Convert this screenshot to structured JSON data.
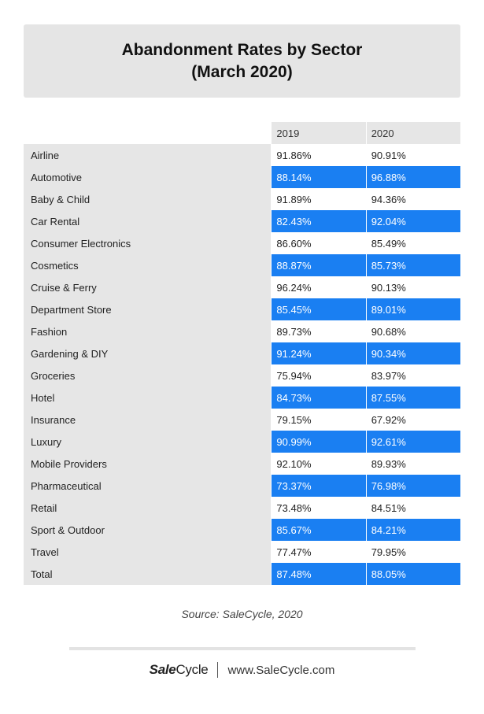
{
  "chart_data": {
    "type": "table",
    "title_lines": [
      "Abandonment Rates by Sector",
      "(March 2020)"
    ],
    "columns": [
      "2019",
      "2020"
    ],
    "rows": [
      {
        "label": "Airline",
        "values": [
          "91.86%",
          "90.91%"
        ]
      },
      {
        "label": "Automotive",
        "values": [
          "88.14%",
          "96.88%"
        ]
      },
      {
        "label": "Baby & Child",
        "values": [
          "91.89%",
          "94.36%"
        ]
      },
      {
        "label": "Car Rental",
        "values": [
          "82.43%",
          "92.04%"
        ]
      },
      {
        "label": "Consumer Electronics",
        "values": [
          "86.60%",
          "85.49%"
        ]
      },
      {
        "label": "Cosmetics",
        "values": [
          "88.87%",
          "85.73%"
        ]
      },
      {
        "label": "Cruise & Ferry",
        "values": [
          "96.24%",
          "90.13%"
        ]
      },
      {
        "label": "Department Store",
        "values": [
          "85.45%",
          "89.01%"
        ]
      },
      {
        "label": "Fashion",
        "values": [
          "89.73%",
          "90.68%"
        ]
      },
      {
        "label": "Gardening & DIY",
        "values": [
          "91.24%",
          "90.34%"
        ]
      },
      {
        "label": "Groceries",
        "values": [
          "75.94%",
          "83.97%"
        ]
      },
      {
        "label": "Hotel",
        "values": [
          "84.73%",
          "87.55%"
        ]
      },
      {
        "label": "Insurance",
        "values": [
          "79.15%",
          "67.92%"
        ]
      },
      {
        "label": "Luxury",
        "values": [
          "90.99%",
          "92.61%"
        ]
      },
      {
        "label": "Mobile Providers",
        "values": [
          "92.10%",
          "89.93%"
        ]
      },
      {
        "label": "Pharmaceutical",
        "values": [
          "73.37%",
          "76.98%"
        ]
      },
      {
        "label": "Retail",
        "values": [
          "73.48%",
          "84.51%"
        ]
      },
      {
        "label": "Sport & Outdoor",
        "values": [
          "85.67%",
          "84.21%"
        ]
      },
      {
        "label": "Travel",
        "values": [
          "77.47%",
          "79.95%"
        ]
      },
      {
        "label": "Total",
        "values": [
          "87.48%",
          "88.05%"
        ]
      }
    ],
    "source": "Source: SaleCycle, 2020",
    "highlight_color": "#1a7ff2",
    "label_bg_color": "#e6e6e6"
  },
  "footer": {
    "logo_sale": "Sale",
    "logo_cycle": "Cycle",
    "url": "www.SaleCycle.com"
  }
}
